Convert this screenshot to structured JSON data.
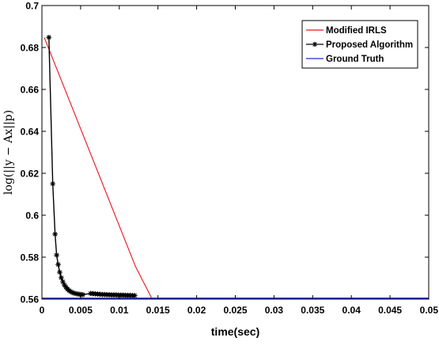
{
  "chart_data": {
    "type": "line",
    "title": "",
    "xlabel": "time(sec)",
    "ylabel": "log(||y − Ax||p)",
    "xlim": [
      0,
      0.05
    ],
    "ylim": [
      0.56,
      0.7
    ],
    "xticks": [
      0,
      0.005,
      0.01,
      0.015,
      0.02,
      0.025,
      0.03,
      0.035,
      0.04,
      0.045,
      0.05
    ],
    "xtick_labels": [
      "0",
      "0.005",
      "0.01",
      "0.015",
      "0.02",
      "0.025",
      "0.03",
      "0.035",
      "0.04",
      "0.045",
      "0.05"
    ],
    "yticks": [
      0.56,
      0.58,
      0.6,
      0.62,
      0.64,
      0.66,
      0.68,
      0.7
    ],
    "ytick_labels": [
      "0.56",
      "0.58",
      "0.6",
      "0.62",
      "0.64",
      "0.66",
      "0.68",
      "0.7"
    ],
    "grid": false,
    "legend_position": "top-right",
    "series": [
      {
        "name": "Modified IRLS",
        "color": "#e8141e",
        "marker": "none",
        "x": [
          0.0003,
          0.0121,
          0.0142,
          0.05
        ],
        "y": [
          0.6848,
          0.5755,
          0.5604,
          0.5604
        ]
      },
      {
        "name": "Proposed Algorithm",
        "color": "#000000",
        "marker": "asterisk",
        "x": [
          0.0009,
          0.0014,
          0.0017,
          0.0019,
          0.0021,
          0.0023,
          0.0025,
          0.0027,
          0.0029,
          0.0031,
          0.0033,
          0.0035,
          0.0037,
          0.0039,
          0.0041,
          0.0043,
          0.0045,
          0.0047,
          0.0049,
          0.0051,
          0.0053,
          0.0063,
          0.0066,
          0.0069,
          0.0072,
          0.0075,
          0.0078,
          0.0081,
          0.0084,
          0.0087,
          0.009,
          0.0093,
          0.0096,
          0.0099,
          0.0102,
          0.0105,
          0.0108,
          0.0111,
          0.0114,
          0.0117,
          0.012
        ],
        "y": [
          0.6848,
          0.615,
          0.591,
          0.581,
          0.5765,
          0.5728,
          0.5702,
          0.5683,
          0.5668,
          0.5657,
          0.5648,
          0.5641,
          0.5636,
          0.5632,
          0.5629,
          0.5627,
          0.5625,
          0.5624,
          0.5623,
          0.5622,
          0.5621,
          0.5627,
          0.5626,
          0.5625,
          0.5624,
          0.5623,
          0.5622,
          0.5622,
          0.5621,
          0.5621,
          0.562,
          0.562,
          0.562,
          0.5619,
          0.5619,
          0.5619,
          0.5618,
          0.5618,
          0.5618,
          0.5617,
          0.5617
        ]
      },
      {
        "name": "Ground Truth",
        "color": "#1f2bd8",
        "marker": "none",
        "x": [
          0,
          0.05
        ],
        "y": [
          0.5604,
          0.5604
        ]
      }
    ]
  }
}
